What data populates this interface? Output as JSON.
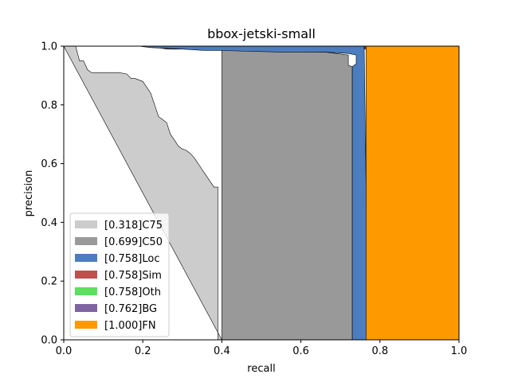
{
  "chart_data": {
    "type": "area",
    "title": "bbox-jetski-small",
    "xlabel": "recall",
    "ylabel": "precision",
    "xlim": [
      0.0,
      1.0
    ],
    "ylim": [
      0.0,
      1.0
    ],
    "x_ticks": [
      "0.0",
      "0.2",
      "0.4",
      "0.6",
      "0.8",
      "1.0"
    ],
    "y_ticks": [
      "0.0",
      "0.2",
      "0.4",
      "0.6",
      "0.8",
      "1.0"
    ],
    "grid": false,
    "legend_position": "lower-left",
    "series": [
      {
        "name": "[0.318]C75",
        "color": "#cccccc",
        "curve": [
          [
            0.0,
            1.0
          ],
          [
            0.03,
            1.0
          ],
          [
            0.04,
            0.95
          ],
          [
            0.05,
            0.95
          ],
          [
            0.06,
            0.92
          ],
          [
            0.07,
            0.91
          ],
          [
            0.09,
            0.91
          ],
          [
            0.12,
            0.91
          ],
          [
            0.14,
            0.91
          ],
          [
            0.16,
            0.905
          ],
          [
            0.17,
            0.89
          ],
          [
            0.18,
            0.89
          ],
          [
            0.2,
            0.88
          ],
          [
            0.21,
            0.86
          ],
          [
            0.22,
            0.84
          ],
          [
            0.23,
            0.8
          ],
          [
            0.24,
            0.76
          ],
          [
            0.25,
            0.75
          ],
          [
            0.26,
            0.74
          ],
          [
            0.27,
            0.7
          ],
          [
            0.28,
            0.68
          ],
          [
            0.29,
            0.66
          ],
          [
            0.3,
            0.65
          ],
          [
            0.31,
            0.645
          ],
          [
            0.32,
            0.635
          ],
          [
            0.33,
            0.62
          ],
          [
            0.34,
            0.6
          ],
          [
            0.35,
            0.58
          ],
          [
            0.36,
            0.56
          ],
          [
            0.37,
            0.54
          ],
          [
            0.38,
            0.52
          ],
          [
            0.39,
            0.52
          ],
          [
            0.39,
            0.0
          ],
          [
            0.4,
            0.0
          ]
        ]
      },
      {
        "name": "[0.699]C50",
        "color": "#999999",
        "curve": [
          [
            0.0,
            1.0
          ],
          [
            0.4,
            1.0
          ],
          [
            0.4,
            0.0
          ],
          [
            0.73,
            0.0
          ],
          [
            0.73,
            0.93
          ],
          [
            0.72,
            0.935
          ],
          [
            0.72,
            0.97
          ],
          [
            0.66,
            0.98
          ],
          [
            0.3,
            0.99
          ],
          [
            0.26,
            0.99
          ],
          [
            0.22,
            1.0
          ],
          [
            0.0,
            1.0
          ]
        ]
      },
      {
        "name": "[0.758]Loc",
        "color": "#4c7dbf",
        "curve": [
          [
            0.19,
            1.0
          ],
          [
            0.76,
            1.0
          ],
          [
            0.77,
            0.0
          ],
          [
            0.73,
            0.0
          ],
          [
            0.73,
            0.93
          ],
          [
            0.74,
            0.94
          ],
          [
            0.74,
            0.97
          ],
          [
            0.72,
            0.975
          ],
          [
            0.66,
            0.98
          ],
          [
            0.55,
            0.98
          ],
          [
            0.4,
            0.985
          ],
          [
            0.36,
            0.985
          ],
          [
            0.3,
            0.99
          ],
          [
            0.22,
            0.995
          ],
          [
            0.19,
            1.0
          ]
        ]
      },
      {
        "name": "[0.758]Sim",
        "color": "#c0504d",
        "curve": [
          [
            0.76,
            1.0
          ],
          [
            0.765,
            1.0
          ],
          [
            0.765,
            0.99
          ],
          [
            0.76,
            0.99
          ]
        ]
      },
      {
        "name": "[0.758]Oth",
        "color": "#5be060",
        "curve": []
      },
      {
        "name": "[0.762]BG",
        "color": "#8064a2",
        "curve": [
          [
            0.76,
            1.0
          ],
          [
            0.765,
            1.0
          ],
          [
            0.765,
            0.995
          ],
          [
            0.76,
            0.995
          ]
        ]
      },
      {
        "name": "[1.000]FN",
        "color": "#ff9900",
        "curve": [
          [
            0.765,
            1.0
          ],
          [
            1.0,
            1.0
          ],
          [
            1.0,
            0.0
          ],
          [
            0.765,
            0.0
          ]
        ]
      }
    ]
  }
}
